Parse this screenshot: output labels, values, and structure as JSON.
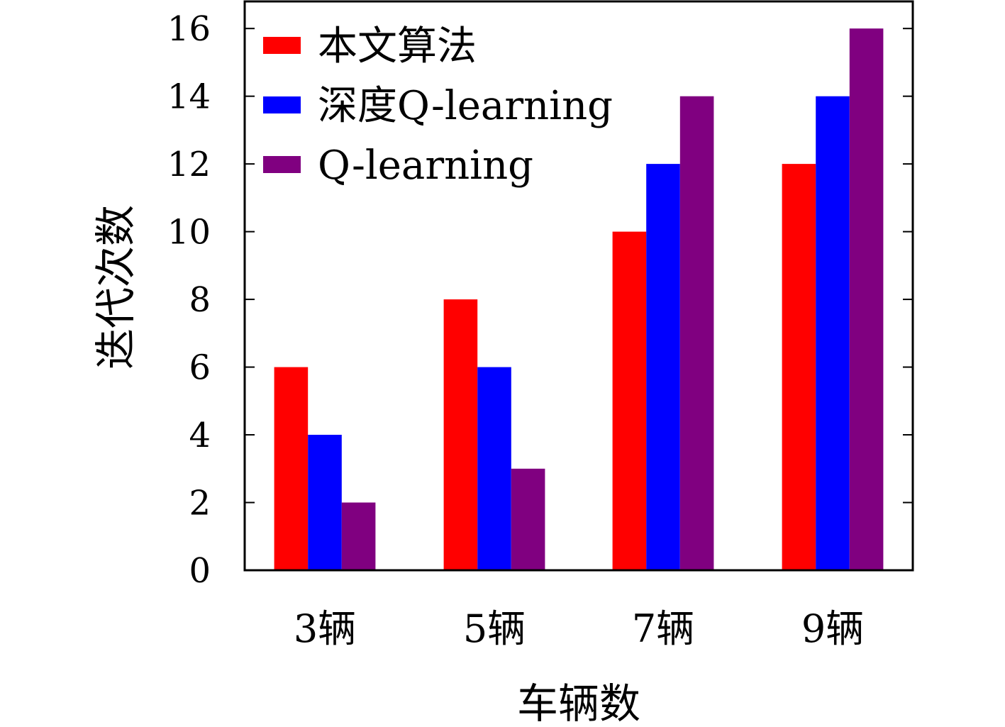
{
  "chart_data": {
    "type": "bar",
    "title": "",
    "xlabel": "车辆数",
    "ylabel": "迭代次数",
    "categories": [
      "3辆",
      "5辆",
      "7辆",
      "9辆"
    ],
    "series": [
      {
        "name": "本文算法",
        "values": [
          6,
          8,
          10,
          12
        ],
        "color": "#ff0000"
      },
      {
        "name": "深度Q-learning",
        "values": [
          4,
          6,
          12,
          14
        ],
        "color": "#0000ff"
      },
      {
        "name": "Q-learning",
        "values": [
          2,
          3,
          14,
          16
        ],
        "color": "#800080"
      }
    ],
    "ylim": [
      0,
      16.8
    ],
    "yticks": [
      0,
      2,
      4,
      6,
      8,
      10,
      12,
      14,
      16
    ],
    "grid": false,
    "legend_position": "top-left"
  }
}
